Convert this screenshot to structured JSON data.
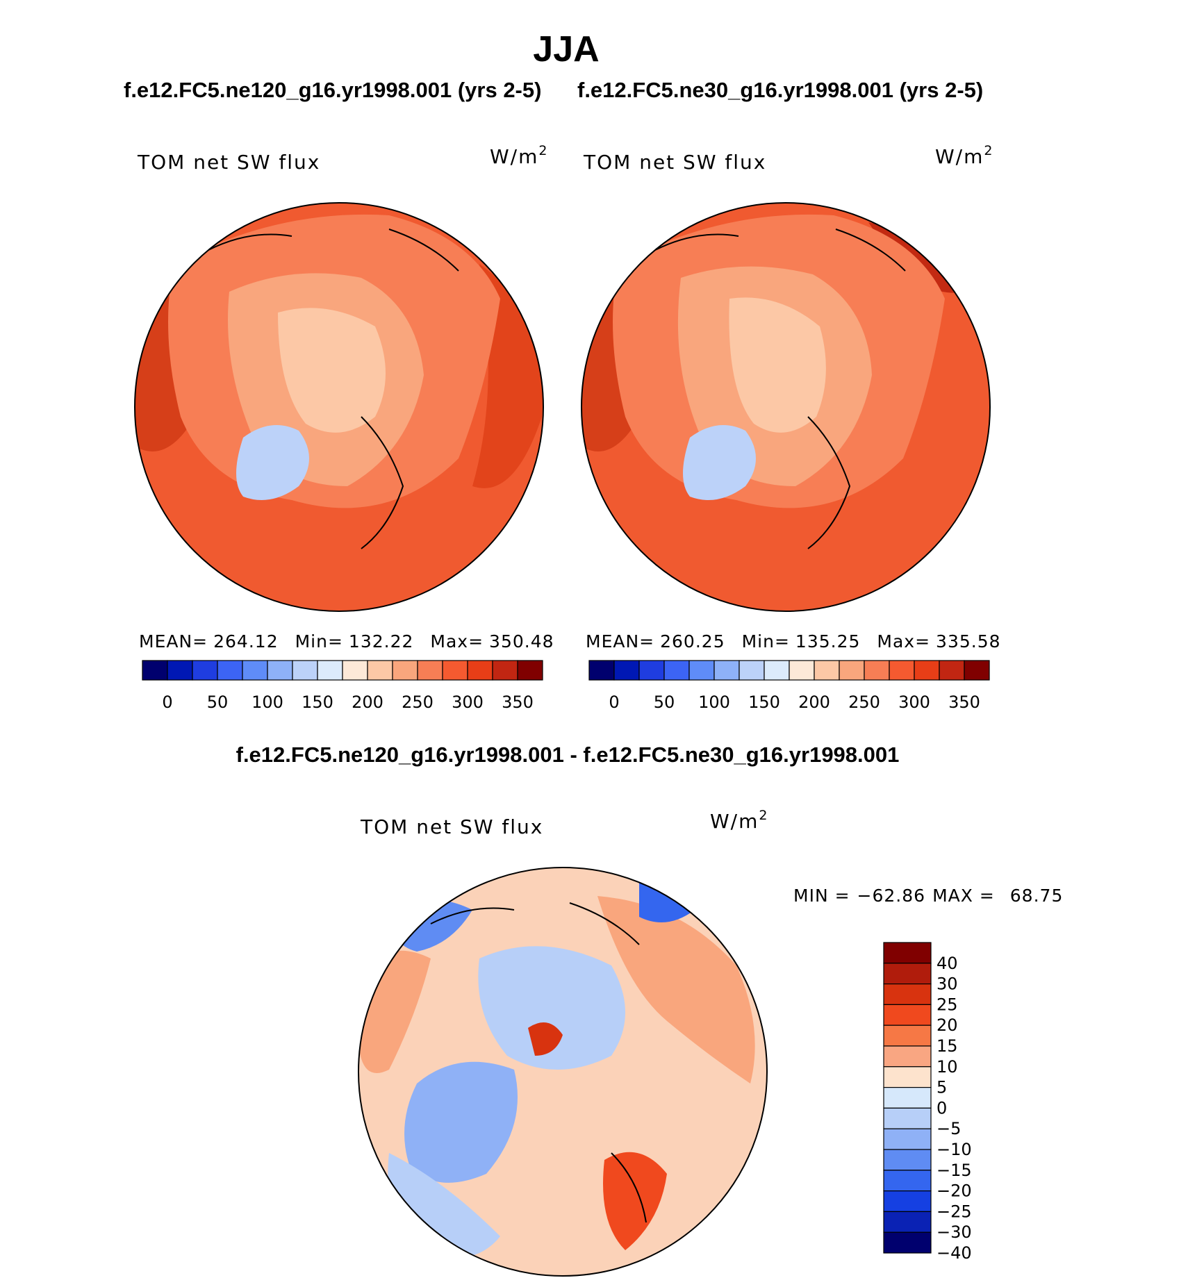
{
  "page": {
    "title": "JJA",
    "subtitle_left": "f.e12.FC5.ne120_g16.yr1998.001 (yrs 2-5)",
    "subtitle_right": "f.e12.FC5.ne30_g16.yr1998.001 (yrs 2-5)",
    "diff_title": "f.e12.FC5.ne120_g16.yr1998.001 - f.e12.FC5.ne30_g16.yr1998.001"
  },
  "chart_data": [
    {
      "type": "heatmap",
      "projection": "north-polar-stereographic",
      "panel": "top-left",
      "case": "f.e12.FC5.ne120_g16.yr1998.001 (yrs 2-5)",
      "variable_label": "TOM net SW flux",
      "units_base": "W/m",
      "units_exp": "2",
      "stats": {
        "mean_label": "MEAN=",
        "mean": "264.12",
        "min_label": "Min=",
        "min": "132.22",
        "max_label": "Max=",
        "max": "350.48"
      },
      "colorbar": {
        "orientation": "horizontal",
        "colors": [
          "#00006e",
          "#0018b4",
          "#1f3de0",
          "#3c64f5",
          "#5f8cf8",
          "#8eb1f8",
          "#bcd2f9",
          "#dcebfb",
          "#fde9d8",
          "#fcc8a6",
          "#f9a67d",
          "#f77e55",
          "#f55a30",
          "#e83e17",
          "#c12612",
          "#800000"
        ],
        "tick_labels": [
          "0",
          "50",
          "100",
          "150",
          "200",
          "250",
          "300",
          "350"
        ]
      }
    },
    {
      "type": "heatmap",
      "projection": "north-polar-stereographic",
      "panel": "top-right",
      "case": "f.e12.FC5.ne30_g16.yr1998.001 (yrs 2-5)",
      "variable_label": "TOM net SW flux",
      "units_base": "W/m",
      "units_exp": "2",
      "stats": {
        "mean_label": "MEAN=",
        "mean": "260.25",
        "min_label": "Min=",
        "min": "135.25",
        "max_label": "Max=",
        "max": "335.58"
      },
      "colorbar": {
        "orientation": "horizontal",
        "colors": [
          "#00006e",
          "#0018b4",
          "#1f3de0",
          "#3c64f5",
          "#5f8cf8",
          "#8eb1f8",
          "#bcd2f9",
          "#dcebfb",
          "#fde9d8",
          "#fcc8a6",
          "#f9a67d",
          "#f77e55",
          "#f55a30",
          "#e83e17",
          "#c12612",
          "#800000"
        ],
        "tick_labels": [
          "0",
          "50",
          "100",
          "150",
          "200",
          "250",
          "300",
          "350"
        ]
      }
    },
    {
      "type": "heatmap",
      "projection": "north-polar-stereographic",
      "panel": "bottom-difference",
      "case": "f.e12.FC5.ne120_g16.yr1998.001 - f.e12.FC5.ne30_g16.yr1998.001",
      "variable_label": "TOM net SW flux",
      "units_base": "W/m",
      "units_exp": "2",
      "stats": {
        "min_label": "MIN =",
        "min": "−62.86",
        "max_label": "MAX =",
        "max": "68.75"
      },
      "colorbar": {
        "orientation": "vertical",
        "colors_top_to_bottom": [
          "#800000",
          "#b01c0c",
          "#d8330f",
          "#f0491e",
          "#f67845",
          "#f9a682",
          "#fde3cd",
          "#d6e8fb",
          "#b7cff8",
          "#8fb1f6",
          "#5f8cf3",
          "#3466ef",
          "#1540e2",
          "#0a22b4",
          "#00006e"
        ],
        "tick_labels_top_to_bottom": [
          "40",
          "30",
          "25",
          "20",
          "15",
          "10",
          "5",
          "0",
          "−5",
          "−10",
          "−15",
          "−20",
          "−25",
          "−30",
          "−40"
        ]
      }
    }
  ]
}
